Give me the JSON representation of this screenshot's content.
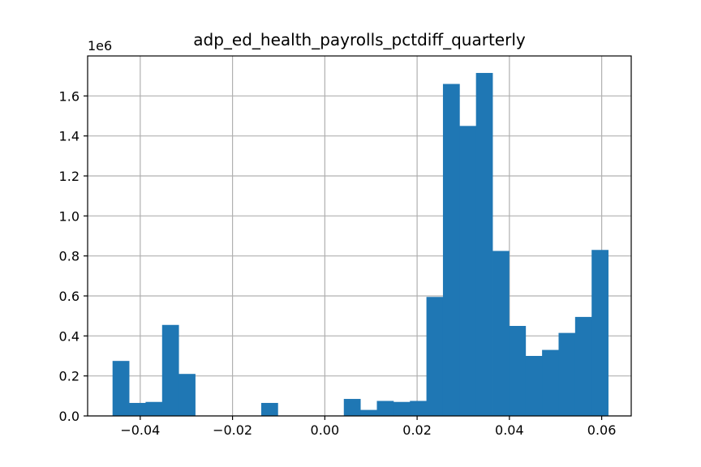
{
  "chart_data": {
    "type": "bar",
    "title": "adp_ed_health_payrolls_pctdiff_quarterly",
    "y_offset_label": "1e6",
    "xlim": [
      -0.0514,
      0.0664
    ],
    "ylim": [
      0,
      1.8
    ],
    "x_ticks": [
      -0.04,
      -0.02,
      0.0,
      0.02,
      0.04,
      0.06
    ],
    "x_tick_labels": [
      "−0.04",
      "−0.02",
      "0.00",
      "0.02",
      "0.04",
      "0.06"
    ],
    "y_ticks": [
      0.0,
      0.2,
      0.4,
      0.6,
      0.8,
      1.0,
      1.2,
      1.4,
      1.6
    ],
    "y_tick_labels": [
      "0.0",
      "0.2",
      "0.4",
      "0.6",
      "0.8",
      "1.0",
      "1.2",
      "1.4",
      "1.6"
    ],
    "grid": true,
    "bar_color": "#1f77b4",
    "bin_start": -0.046,
    "bin_width": 0.00358,
    "values": [
      0.275,
      0.065,
      0.07,
      0.455,
      0.21,
      0,
      0,
      0,
      0,
      0.065,
      0,
      0,
      0,
      0,
      0.085,
      0.03,
      0.075,
      0.07,
      0.075,
      0.595,
      1.66,
      1.45,
      1.715,
      0.825,
      0.45,
      0.3,
      0.33,
      0.415,
      0.495,
      0.83
    ]
  }
}
